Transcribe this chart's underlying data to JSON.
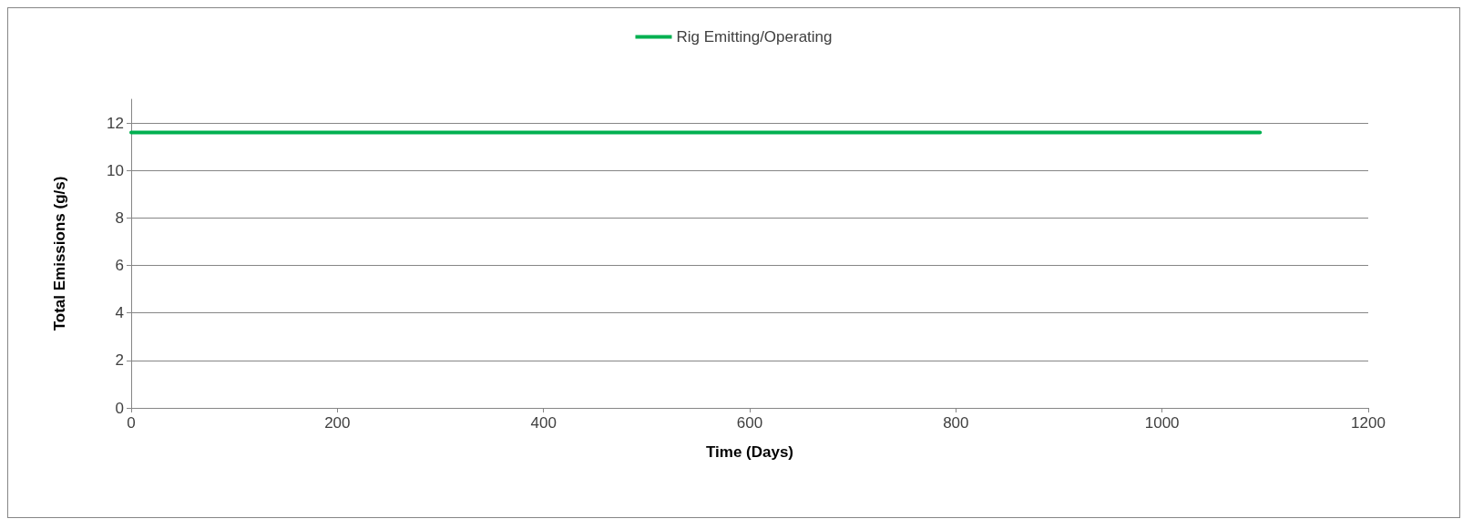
{
  "chart_data": {
    "type": "line",
    "xlabel": "Time (Days)",
    "ylabel": "Total Emissions (g/s)",
    "series": [
      {
        "name": "Rig Emitting/Operating",
        "color": "#00b050",
        "x": [
          0,
          1095
        ],
        "values": [
          11.6,
          11.6
        ]
      }
    ],
    "xlim": [
      0,
      1200
    ],
    "xticks": [
      0,
      200,
      400,
      600,
      800,
      1000,
      1200
    ],
    "ylim": [
      0,
      13
    ],
    "yticks": [
      0,
      2,
      4,
      6,
      8,
      10,
      12
    ],
    "grid": "y",
    "legend": "top",
    "marker": "none",
    "line_style": "solid"
  }
}
